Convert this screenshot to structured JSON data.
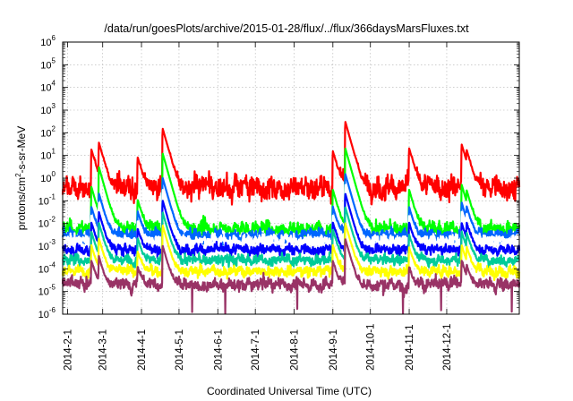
{
  "chart_data": {
    "type": "line",
    "title": "/data/run/goesPlots/archive/2015-01-28/flux/../flux/366daysMarsFluxes.txt",
    "xlabel": "Coordinated Universal Time (UTC)",
    "ylabel_parts": {
      "a": "protons/cm",
      "sup": "2",
      "b": "-s-sr-MeV"
    },
    "y_scale": "log",
    "ylim": [
      1e-06,
      1000000.0
    ],
    "y_tick_labels": [
      {
        "base": "10",
        "exp": "-6"
      },
      {
        "base": "10",
        "exp": "-5"
      },
      {
        "base": "10",
        "exp": "-4"
      },
      {
        "base": "10",
        "exp": "-3"
      },
      {
        "base": "10",
        "exp": "-2"
      },
      {
        "base": "10",
        "exp": "-1"
      },
      {
        "base": "10",
        "exp": "0"
      },
      {
        "base": "10",
        "exp": "1"
      },
      {
        "base": "10",
        "exp": "2"
      },
      {
        "base": "10",
        "exp": "3"
      },
      {
        "base": "10",
        "exp": "4"
      },
      {
        "base": "10",
        "exp": "5"
      },
      {
        "base": "10",
        "exp": "6"
      }
    ],
    "xlim": [
      "2014-01-28",
      "2015-01-28"
    ],
    "x_tick_labels": [
      "2014-2-1",
      "2014-3-1",
      "2014-4-1",
      "2014-5-1",
      "2014-6-1",
      "2014-7-1",
      "2014-8-1",
      "2014-9-1",
      "2014-10-1",
      "2014-11-1",
      "2014-12-1"
    ],
    "x_tick_dates": [
      "2014-02-01",
      "2014-03-01",
      "2014-04-01",
      "2014-05-01",
      "2014-06-01",
      "2014-07-01",
      "2014-08-01",
      "2014-09-01",
      "2014-10-01",
      "2014-11-01",
      "2014-12-01"
    ],
    "grid": true,
    "legend": "none",
    "series": [
      {
        "color": "#ff0000",
        "baseline": 0.4,
        "noise": 0.55
      },
      {
        "color": "#00ff00",
        "baseline": 0.006,
        "noise": 0.35
      },
      {
        "color": "#0066ff",
        "baseline": 0.003,
        "noise": 0.3
      },
      {
        "color": "#ffffff",
        "baseline": 0.0018,
        "noise": 0.25
      },
      {
        "color": "#0000ff",
        "baseline": 0.0007,
        "noise": 0.25
      },
      {
        "color": "#00cc99",
        "baseline": 0.00025,
        "noise": 0.25
      },
      {
        "color": "#ffff00",
        "baseline": 8e-05,
        "noise": 0.25
      },
      {
        "color": "#993366",
        "baseline": 2e-05,
        "noise": 0.3
      }
    ],
    "events": [
      {
        "date": "2014-02-20",
        "peaks": [
          18,
          0.4,
          0.05,
          0.02,
          0.01,
          0.004,
          0.001,
          0.0002
        ]
      },
      {
        "date": "2014-02-26",
        "peaks": [
          35,
          3,
          0.2,
          0.08,
          0.03,
          0.01,
          0.002,
          0.0003
        ]
      },
      {
        "date": "2014-03-29",
        "peaks": [
          8,
          0.1,
          0.03,
          0.01,
          0.005,
          0.002,
          0.0005,
          0.0001
        ]
      },
      {
        "date": "2014-04-18",
        "peaks": [
          150,
          12,
          1,
          0.3,
          0.1,
          0.03,
          0.008,
          0.001
        ]
      },
      {
        "date": "2014-09-01",
        "peaks": [
          15,
          0.3,
          0.05,
          0.02,
          0.01,
          0.005,
          0.001,
          0.0002
        ]
      },
      {
        "date": "2014-09-11",
        "peaks": [
          300,
          20,
          1.5,
          0.5,
          0.2,
          0.05,
          0.01,
          0.002
        ]
      },
      {
        "date": "2014-11-01",
        "peaks": [
          20,
          0.3,
          0.05,
          0.02,
          0.01,
          0.003,
          0.0008,
          0.0001
        ]
      },
      {
        "date": "2014-12-13",
        "peaks": [
          30,
          0.5,
          0.08,
          0.03,
          0.01,
          0.004,
          0.001,
          0.0002
        ]
      },
      {
        "date": "2014-12-17",
        "peaks": [
          12,
          0.2,
          0.04,
          0.02,
          0.008,
          0.003,
          0.0007,
          0.0001
        ]
      }
    ]
  }
}
